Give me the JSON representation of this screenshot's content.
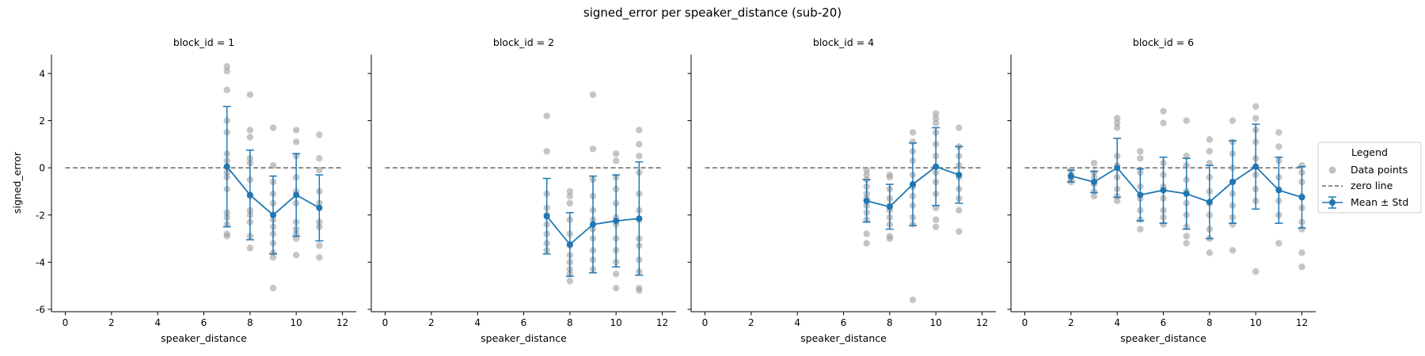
{
  "figure": {
    "title": "signed_error per speaker_distance (sub-20)",
    "ylabel": "signed_error",
    "xlabel": "speaker_distance",
    "xlim": [
      -0.6,
      12.6
    ],
    "ylim": [
      -6.1,
      4.8
    ],
    "xticks": [
      0,
      2,
      4,
      6,
      8,
      10,
      12
    ],
    "yticks": [
      -6,
      -4,
      -2,
      0,
      2,
      4
    ],
    "zero_line": 0
  },
  "colors": {
    "points": "#9e9e9e",
    "mean": "#1f77b4",
    "zero_line": "#666666",
    "axes": "#000000"
  },
  "legend": {
    "title": "Legend",
    "placement": "right, outside panels",
    "entries": [
      {
        "label": "Data points",
        "kind": "points"
      },
      {
        "label": "zero line",
        "kind": "dashed-line"
      },
      {
        "label": "Mean ± Std",
        "kind": "errorbar"
      }
    ]
  },
  "chart_data": [
    {
      "type": "scatter",
      "title": "block_id = 1",
      "xlabel": "speaker_distance",
      "ylabel": "signed_error",
      "points": [
        [
          7,
          4.3
        ],
        [
          7,
          4.1
        ],
        [
          7,
          3.3
        ],
        [
          7,
          2.0
        ],
        [
          7,
          1.5
        ],
        [
          7,
          0.6
        ],
        [
          7,
          0.3
        ],
        [
          7,
          -0.2
        ],
        [
          7,
          -0.4
        ],
        [
          7,
          -0.9
        ],
        [
          7,
          -1.9
        ],
        [
          7,
          -2.1
        ],
        [
          7,
          -2.4
        ],
        [
          7,
          -2.8
        ],
        [
          7,
          -2.9
        ],
        [
          8,
          3.1
        ],
        [
          8,
          1.6
        ],
        [
          8,
          1.3
        ],
        [
          8,
          0.4
        ],
        [
          8,
          0.2
        ],
        [
          8,
          -0.5
        ],
        [
          8,
          -1.2
        ],
        [
          8,
          -1.8
        ],
        [
          8,
          -2.0
        ],
        [
          8,
          -2.3
        ],
        [
          8,
          -2.9
        ],
        [
          8,
          -3.4
        ],
        [
          9,
          1.7
        ],
        [
          9,
          0.1
        ],
        [
          9,
          -0.6
        ],
        [
          9,
          -1.1
        ],
        [
          9,
          -1.5
        ],
        [
          9,
          -2.2
        ],
        [
          9,
          -2.5
        ],
        [
          9,
          -2.8
        ],
        [
          9,
          -3.2
        ],
        [
          9,
          -3.6
        ],
        [
          9,
          -3.8
        ],
        [
          9,
          -5.1
        ],
        [
          10,
          1.6
        ],
        [
          10,
          1.1
        ],
        [
          10,
          0.5
        ],
        [
          10,
          -0.4
        ],
        [
          10,
          -1.0
        ],
        [
          10,
          -1.5
        ],
        [
          10,
          -2.3
        ],
        [
          10,
          -2.6
        ],
        [
          10,
          -2.8
        ],
        [
          10,
          -3.0
        ],
        [
          10,
          -3.7
        ],
        [
          11,
          1.4
        ],
        [
          11,
          0.4
        ],
        [
          11,
          -0.1
        ],
        [
          11,
          -1.0
        ],
        [
          11,
          -1.5
        ],
        [
          11,
          -2.3
        ],
        [
          11,
          -2.5
        ],
        [
          11,
          -3.3
        ],
        [
          11,
          -3.8
        ]
      ],
      "series": [
        {
          "name": "Mean ± Std",
          "x": [
            7,
            8,
            9,
            10,
            11
          ],
          "mean": [
            0.05,
            -1.15,
            -2.0,
            -1.15,
            -1.7
          ],
          "std": [
            2.55,
            1.9,
            1.65,
            1.75,
            1.4
          ]
        }
      ]
    },
    {
      "type": "scatter",
      "title": "block_id = 2",
      "xlabel": "speaker_distance",
      "points": [
        [
          7,
          2.2
        ],
        [
          7,
          0.7
        ],
        [
          7,
          -1.1
        ],
        [
          7,
          -1.7
        ],
        [
          7,
          -2.0
        ],
        [
          7,
          -2.4
        ],
        [
          7,
          -2.8
        ],
        [
          7,
          -3.2
        ],
        [
          7,
          -3.5
        ],
        [
          8,
          -1.0
        ],
        [
          8,
          -1.2
        ],
        [
          8,
          -1.5
        ],
        [
          8,
          -2.2
        ],
        [
          8,
          -2.8
        ],
        [
          8,
          -3.3
        ],
        [
          8,
          -3.7
        ],
        [
          8,
          -4.0
        ],
        [
          8,
          -4.3
        ],
        [
          8,
          -4.5
        ],
        [
          8,
          -4.8
        ],
        [
          9,
          3.1
        ],
        [
          9,
          0.8
        ],
        [
          9,
          -0.5
        ],
        [
          9,
          -1.2
        ],
        [
          9,
          -1.8
        ],
        [
          9,
          -2.2
        ],
        [
          9,
          -2.6
        ],
        [
          9,
          -3.0
        ],
        [
          9,
          -3.5
        ],
        [
          9,
          -3.9
        ],
        [
          9,
          -4.3
        ],
        [
          10,
          0.6
        ],
        [
          10,
          0.3
        ],
        [
          10,
          -0.4
        ],
        [
          10,
          -0.9
        ],
        [
          10,
          -1.5
        ],
        [
          10,
          -2.1
        ],
        [
          10,
          -2.4
        ],
        [
          10,
          -3.0
        ],
        [
          10,
          -3.5
        ],
        [
          10,
          -4.0
        ],
        [
          10,
          -4.5
        ],
        [
          10,
          -5.1
        ],
        [
          11,
          1.6
        ],
        [
          11,
          1.0
        ],
        [
          11,
          0.5
        ],
        [
          11,
          -0.2
        ],
        [
          11,
          -1.1
        ],
        [
          11,
          -1.8
        ],
        [
          11,
          -2.2
        ],
        [
          11,
          -3.0
        ],
        [
          11,
          -3.3
        ],
        [
          11,
          -3.9
        ],
        [
          11,
          -4.4
        ],
        [
          11,
          -5.1
        ],
        [
          11,
          -5.2
        ]
      ],
      "series": [
        {
          "name": "Mean ± Std",
          "x": [
            7,
            8,
            9,
            10,
            11
          ],
          "mean": [
            -2.05,
            -3.25,
            -2.4,
            -2.25,
            -2.15
          ],
          "std": [
            1.6,
            1.35,
            2.05,
            1.95,
            2.4
          ]
        }
      ]
    },
    {
      "type": "scatter",
      "title": "block_id = 4",
      "xlabel": "speaker_distance",
      "points": [
        [
          7,
          -0.1
        ],
        [
          7,
          -0.3
        ],
        [
          7,
          -0.5
        ],
        [
          7,
          -0.8
        ],
        [
          7,
          -1.1
        ],
        [
          7,
          -1.3
        ],
        [
          7,
          -1.6
        ],
        [
          7,
          -1.9
        ],
        [
          7,
          -2.2
        ],
        [
          7,
          -2.8
        ],
        [
          7,
          -3.2
        ],
        [
          8,
          -0.3
        ],
        [
          8,
          -0.4
        ],
        [
          8,
          -0.9
        ],
        [
          8,
          -1.3
        ],
        [
          8,
          -1.6
        ],
        [
          8,
          -1.8
        ],
        [
          8,
          -2.1
        ],
        [
          8,
          -2.4
        ],
        [
          8,
          -2.9
        ],
        [
          8,
          -3.0
        ],
        [
          9,
          1.5
        ],
        [
          9,
          1.1
        ],
        [
          9,
          0.7
        ],
        [
          9,
          0.3
        ],
        [
          9,
          -0.3
        ],
        [
          9,
          -0.8
        ],
        [
          9,
          -1.2
        ],
        [
          9,
          -1.6
        ],
        [
          9,
          -2.1
        ],
        [
          9,
          -2.4
        ],
        [
          9,
          -5.6
        ],
        [
          10,
          2.3
        ],
        [
          10,
          2.1
        ],
        [
          10,
          1.9
        ],
        [
          10,
          1.5
        ],
        [
          10,
          1.0
        ],
        [
          10,
          0.5
        ],
        [
          10,
          -0.2
        ],
        [
          10,
          -0.6
        ],
        [
          10,
          -1.1
        ],
        [
          10,
          -1.7
        ],
        [
          10,
          -2.2
        ],
        [
          10,
          -2.5
        ],
        [
          11,
          1.7
        ],
        [
          11,
          0.9
        ],
        [
          11,
          0.5
        ],
        [
          11,
          0.1
        ],
        [
          11,
          -0.4
        ],
        [
          11,
          -0.9
        ],
        [
          11,
          -1.3
        ],
        [
          11,
          -1.8
        ],
        [
          11,
          -2.7
        ]
      ],
      "series": [
        {
          "name": "Mean ± Std",
          "x": [
            7,
            8,
            9,
            10,
            11
          ],
          "mean": [
            -1.4,
            -1.65,
            -0.7,
            0.05,
            -0.3
          ],
          "std": [
            0.9,
            0.95,
            1.75,
            1.65,
            1.2
          ]
        }
      ]
    },
    {
      "type": "scatter",
      "title": "block_id = 6",
      "xlabel": "speaker_distance",
      "points": [
        [
          2,
          -0.1
        ],
        [
          2,
          -0.3
        ],
        [
          2,
          -0.4
        ],
        [
          2,
          -0.5
        ],
        [
          2,
          -0.6
        ],
        [
          3,
          0.2
        ],
        [
          3,
          -0.2
        ],
        [
          3,
          -0.4
        ],
        [
          3,
          -0.7
        ],
        [
          3,
          -1.0
        ],
        [
          3,
          -1.2
        ],
        [
          4,
          2.1
        ],
        [
          4,
          1.9
        ],
        [
          4,
          1.7
        ],
        [
          4,
          0.5
        ],
        [
          4,
          0.1
        ],
        [
          4,
          -0.4
        ],
        [
          4,
          -0.9
        ],
        [
          4,
          -1.2
        ],
        [
          4,
          -1.4
        ],
        [
          5,
          0.7
        ],
        [
          5,
          0.4
        ],
        [
          5,
          -0.2
        ],
        [
          5,
          -0.8
        ],
        [
          5,
          -1.3
        ],
        [
          5,
          -1.8
        ],
        [
          5,
          -2.2
        ],
        [
          5,
          -2.6
        ],
        [
          6,
          2.4
        ],
        [
          6,
          1.9
        ],
        [
          6,
          0.2
        ],
        [
          6,
          -0.3
        ],
        [
          6,
          -0.8
        ],
        [
          6,
          -1.3
        ],
        [
          6,
          -1.8
        ],
        [
          6,
          -2.1
        ],
        [
          6,
          -2.4
        ],
        [
          7,
          2.0
        ],
        [
          7,
          0.5
        ],
        [
          7,
          0.1
        ],
        [
          7,
          -0.5
        ],
        [
          7,
          -1.0
        ],
        [
          7,
          -1.5
        ],
        [
          7,
          -2.0
        ],
        [
          7,
          -2.5
        ],
        [
          7,
          -2.9
        ],
        [
          7,
          -3.2
        ],
        [
          8,
          1.2
        ],
        [
          8,
          0.7
        ],
        [
          8,
          0.2
        ],
        [
          8,
          -0.4
        ],
        [
          8,
          -1.0
        ],
        [
          8,
          -1.5
        ],
        [
          8,
          -2.0
        ],
        [
          8,
          -2.6
        ],
        [
          8,
          -3.0
        ],
        [
          8,
          -3.6
        ],
        [
          9,
          2.0
        ],
        [
          9,
          1.1
        ],
        [
          9,
          0.6
        ],
        [
          9,
          0.0
        ],
        [
          9,
          -0.6
        ],
        [
          9,
          -1.1
        ],
        [
          9,
          -1.6
        ],
        [
          9,
          -2.1
        ],
        [
          9,
          -2.4
        ],
        [
          9,
          -3.5
        ],
        [
          10,
          2.6
        ],
        [
          10,
          2.1
        ],
        [
          10,
          1.6
        ],
        [
          10,
          1.1
        ],
        [
          10,
          0.4
        ],
        [
          10,
          -0.3
        ],
        [
          10,
          -0.9
        ],
        [
          10,
          -1.4
        ],
        [
          10,
          -4.4
        ],
        [
          11,
          1.5
        ],
        [
          11,
          0.9
        ],
        [
          11,
          0.3
        ],
        [
          11,
          -0.4
        ],
        [
          11,
          -0.9
        ],
        [
          11,
          -1.4
        ],
        [
          11,
          -2.0
        ],
        [
          11,
          -3.2
        ],
        [
          12,
          0.1
        ],
        [
          12,
          -0.2
        ],
        [
          12,
          -0.6
        ],
        [
          12,
          -1.2
        ],
        [
          12,
          -1.7
        ],
        [
          12,
          -2.3
        ],
        [
          12,
          -2.6
        ],
        [
          12,
          -3.6
        ],
        [
          12,
          -4.2
        ]
      ],
      "series": [
        {
          "name": "Mean ± Std",
          "x": [
            2,
            3,
            4,
            5,
            6,
            7,
            8,
            9,
            10,
            11,
            12
          ],
          "mean": [
            -0.35,
            -0.6,
            0.0,
            -1.15,
            -0.95,
            -1.1,
            -1.45,
            -0.6,
            0.05,
            -0.95,
            -1.25
          ],
          "std": [
            0.25,
            0.45,
            1.25,
            1.1,
            1.4,
            1.5,
            1.55,
            1.75,
            1.8,
            1.4,
            1.3
          ]
        }
      ]
    }
  ]
}
